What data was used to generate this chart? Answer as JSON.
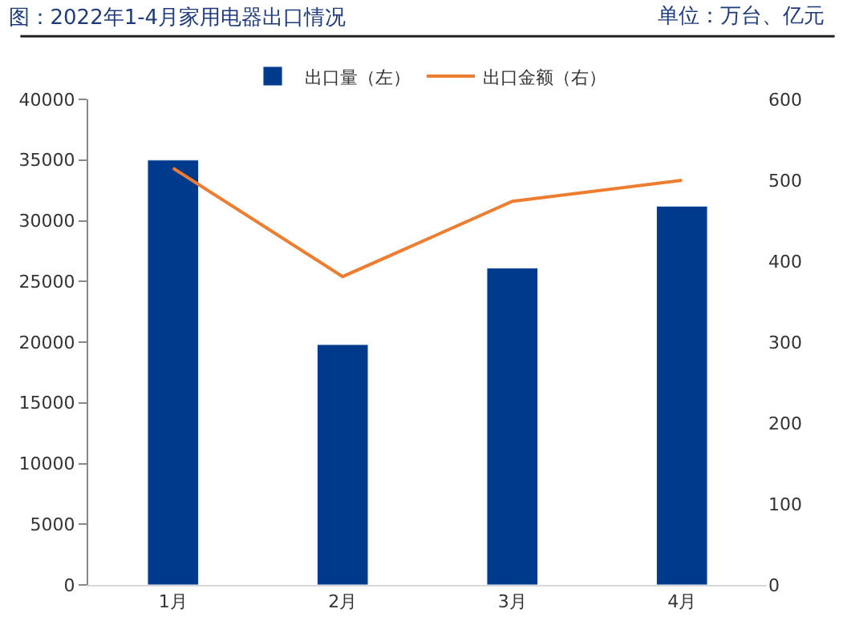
{
  "chart_data": {
    "type": "bar",
    "title": "图：2022年1-4月家用电器出口情况",
    "annotations": [
      "单位：万台、亿元"
    ],
    "categories": [
      "1月",
      "2月",
      "3月",
      "4月"
    ],
    "series": [
      {
        "name": "出口量（左）",
        "color": "#003a8c",
        "values": [
          35000,
          19800,
          26100,
          31200
        ]
      },
      {
        "name": "出口金额（右）",
        "type": "line",
        "axis": "y2",
        "color": "#ed7d31",
        "values": [
          515,
          381,
          474,
          500
        ]
      }
    ],
    "ylim": [
      0,
      40000
    ],
    "yticks": [
      0,
      5000,
      10000,
      15000,
      20000,
      25000,
      30000,
      35000,
      40000
    ],
    "y2lim": [
      0,
      600
    ],
    "y2ticks": [
      0,
      100,
      200,
      300,
      400,
      500,
      600
    ],
    "legend": "top",
    "marker": "none"
  }
}
